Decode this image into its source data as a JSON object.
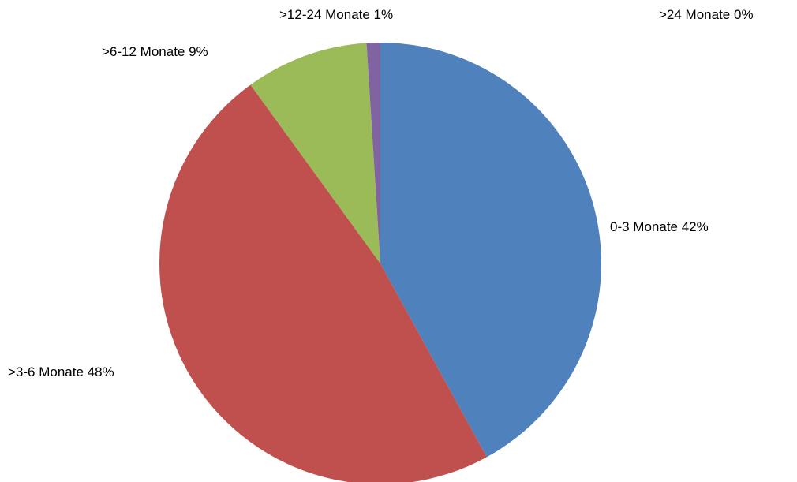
{
  "chart_data": {
    "type": "pie",
    "title": "",
    "slices": [
      {
        "label": "0-3 Monate",
        "value_label": "42%",
        "value": 42,
        "color": "#4F81BD"
      },
      {
        "label": ">3-6 Monate",
        "value_label": "48%",
        "value": 48,
        "color": "#C0504D"
      },
      {
        "label": ">6-12 Monate",
        "value_label": "9%",
        "value": 9,
        "color": "#9BBB59"
      },
      {
        "label": ">12-24 Monate",
        "value_label": "1%",
        "value": 1,
        "color": "#8064A2"
      },
      {
        "label": ">24 Monate",
        "value_label": "0%",
        "value": 0,
        "color": "#4BACC6"
      }
    ],
    "start_angle": "12 o'clock",
    "direction": "clockwise",
    "legend": "none"
  }
}
